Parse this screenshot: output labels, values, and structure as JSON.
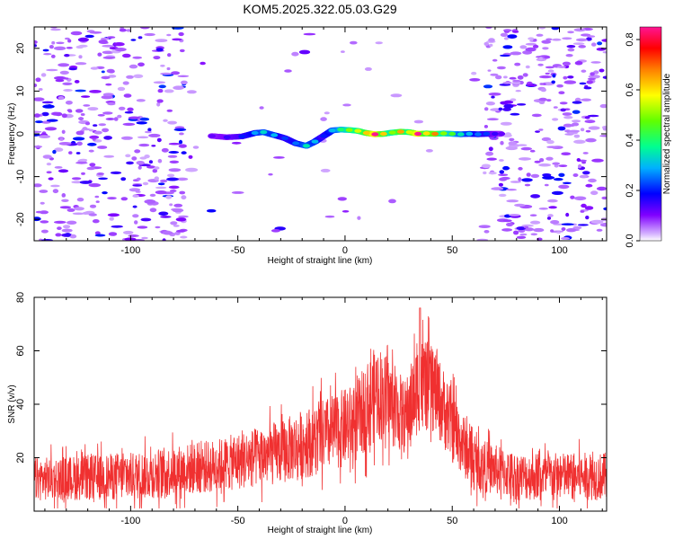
{
  "title": "KOM5.2025.322.05.03.G29",
  "chart_data": [
    {
      "type": "heatmap",
      "name": "spectrogram",
      "xlabel": "Height of straight line (km)",
      "ylabel": "Frequency (Hz)",
      "xlim": [
        -145,
        122
      ],
      "ylim": [
        -25,
        25
      ],
      "xticks": [
        -100,
        -50,
        0,
        50,
        100
      ],
      "yticks": [
        -20,
        -10,
        0,
        10,
        20
      ],
      "colorbar": {
        "label": "Normalized spectral amplitude",
        "range": [
          0,
          0.85
        ],
        "ticks": [
          0.0,
          0.2,
          0.4,
          0.6,
          0.8
        ],
        "tick_labels": [
          "0.0",
          "0.2",
          "0.4",
          "0.6",
          "0.8"
        ]
      },
      "signal_track": [
        {
          "x": -62,
          "y": -0.5,
          "amp": 0.12
        },
        {
          "x": -55,
          "y": -0.8,
          "amp": 0.15
        },
        {
          "x": -48,
          "y": -0.6,
          "amp": 0.2
        },
        {
          "x": -42,
          "y": 0.2,
          "amp": 0.28
        },
        {
          "x": -38,
          "y": 0.4,
          "amp": 0.33
        },
        {
          "x": -33,
          "y": -0.3,
          "amp": 0.3
        },
        {
          "x": -28,
          "y": -1.0,
          "amp": 0.22
        },
        {
          "x": -23,
          "y": -2.2,
          "amp": 0.25
        },
        {
          "x": -18,
          "y": -2.8,
          "amp": 0.35
        },
        {
          "x": -14,
          "y": -1.8,
          "amp": 0.3
        },
        {
          "x": -10,
          "y": -0.5,
          "amp": 0.2
        },
        {
          "x": -6,
          "y": 0.8,
          "amp": 0.3
        },
        {
          "x": -2,
          "y": 1.0,
          "amp": 0.4
        },
        {
          "x": 2,
          "y": 0.9,
          "amp": 0.5
        },
        {
          "x": 6,
          "y": 0.7,
          "amp": 0.55
        },
        {
          "x": 10,
          "y": 0.2,
          "amp": 0.62
        },
        {
          "x": 14,
          "y": -0.1,
          "amp": 0.85
        },
        {
          "x": 18,
          "y": 0.0,
          "amp": 0.62
        },
        {
          "x": 22,
          "y": 0.3,
          "amp": 0.5
        },
        {
          "x": 26,
          "y": 0.5,
          "amp": 0.65
        },
        {
          "x": 30,
          "y": 0.4,
          "amp": 0.55
        },
        {
          "x": 34,
          "y": 0.0,
          "amp": 0.85
        },
        {
          "x": 38,
          "y": 0.1,
          "amp": 0.6
        },
        {
          "x": 42,
          "y": 0.0,
          "amp": 0.68
        },
        {
          "x": 46,
          "y": 0.1,
          "amp": 0.5
        },
        {
          "x": 50,
          "y": 0.0,
          "amp": 0.45
        },
        {
          "x": 54,
          "y": -0.1,
          "amp": 0.35
        },
        {
          "x": 58,
          "y": 0.0,
          "amp": 0.3
        },
        {
          "x": 62,
          "y": -0.1,
          "amp": 0.25
        },
        {
          "x": 66,
          "y": 0.0,
          "amp": 0.22
        },
        {
          "x": 70,
          "y": 0.0,
          "amp": 0.15
        },
        {
          "x": 73,
          "y": 0.0,
          "amp": 0.12
        }
      ]
    },
    {
      "type": "line",
      "name": "snr",
      "xlabel": "Height of straight line (km)",
      "ylabel": "SNR (v/v)",
      "xlim": [
        -145,
        122
      ],
      "ylim": [
        0,
        80
      ],
      "xticks": [
        -100,
        -50,
        0,
        50,
        100
      ],
      "yticks": [
        20,
        40,
        60,
        80
      ],
      "color": "#f03030",
      "envelope": [
        {
          "x": -145,
          "mean": 12,
          "spread": 8
        },
        {
          "x": -100,
          "mean": 13,
          "spread": 9
        },
        {
          "x": -60,
          "mean": 17,
          "spread": 10
        },
        {
          "x": -30,
          "mean": 22,
          "spread": 12
        },
        {
          "x": -10,
          "mean": 28,
          "spread": 14
        },
        {
          "x": 5,
          "mean": 33,
          "spread": 15
        },
        {
          "x": 15,
          "mean": 45,
          "spread": 18
        },
        {
          "x": 22,
          "mean": 40,
          "spread": 16
        },
        {
          "x": 28,
          "mean": 35,
          "spread": 14
        },
        {
          "x": 35,
          "mean": 48,
          "spread": 18
        },
        {
          "x": 42,
          "mean": 45,
          "spread": 16
        },
        {
          "x": 50,
          "mean": 32,
          "spread": 14
        },
        {
          "x": 60,
          "mean": 18,
          "spread": 10
        },
        {
          "x": 80,
          "mean": 13,
          "spread": 9
        },
        {
          "x": 122,
          "mean": 13,
          "spread": 9
        }
      ],
      "peak": {
        "x": 35,
        "y": 76
      }
    }
  ]
}
